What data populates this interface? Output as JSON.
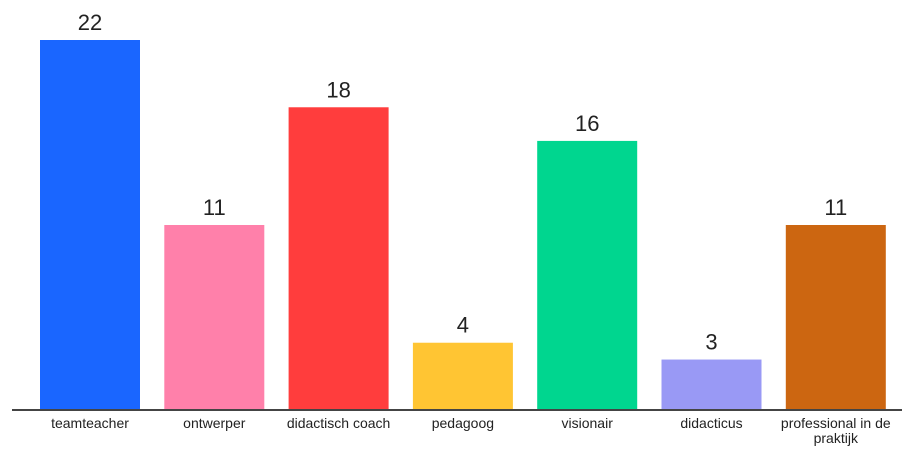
{
  "chart_data": {
    "type": "bar",
    "categories": [
      "teamteacher",
      "ontwerper",
      "didactisch coach",
      "pedagoog",
      "visionair",
      "didacticus",
      "professional in de praktijk"
    ],
    "values": [
      22,
      11,
      18,
      4,
      16,
      3,
      11
    ],
    "colors": [
      "#1a66ff",
      "#ff80aa",
      "#ff3d3d",
      "#ffc533",
      "#00d68f",
      "#9999f5",
      "#cc6611"
    ]
  }
}
